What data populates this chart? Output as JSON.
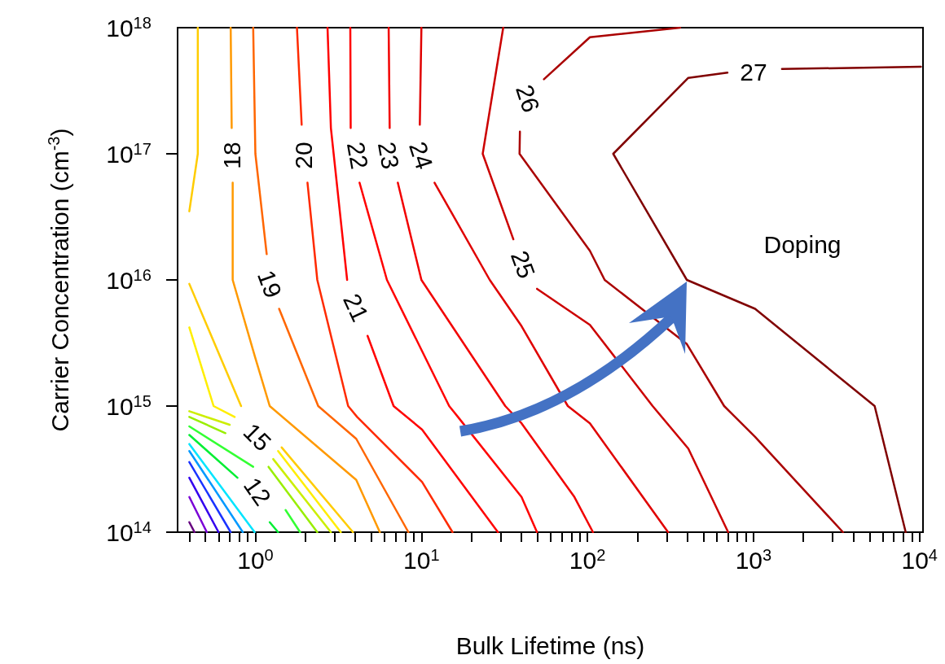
{
  "chart_data": {
    "type": "line",
    "xlabel": "Bulk Lifetime (ns)",
    "ylabel": "Carrier Concentration (cm$^{-3}$)",
    "log": "xy",
    "marker": "none",
    "line_style": "solid",
    "grid": false,
    "xlim": [
      0.34,
      10500
    ],
    "ylim": [
      100000000000000.0,
      1e+18
    ],
    "xticks": [
      {
        "value": 0.4,
        "label": null
      },
      {
        "value": 0.5,
        "label": null
      },
      {
        "value": 0.6,
        "label": null
      },
      {
        "value": 0.7,
        "label": null
      },
      {
        "value": 0.8,
        "label": null
      },
      {
        "value": 0.9,
        "label": null
      },
      {
        "value": 1,
        "label": "10$^{0}$"
      },
      {
        "value": 2,
        "label": null
      },
      {
        "value": 3,
        "label": null
      },
      {
        "value": 4,
        "label": null
      },
      {
        "value": 5,
        "label": null
      },
      {
        "value": 6,
        "label": null
      },
      {
        "value": 7,
        "label": null
      },
      {
        "value": 8,
        "label": null
      },
      {
        "value": 9,
        "label": null
      },
      {
        "value": 10,
        "label": "10$^{1}$"
      },
      {
        "value": 20,
        "label": null
      },
      {
        "value": 30,
        "label": null
      },
      {
        "value": 40,
        "label": null
      },
      {
        "value": 50,
        "label": null
      },
      {
        "value": 60,
        "label": null
      },
      {
        "value": 70,
        "label": null
      },
      {
        "value": 80,
        "label": null
      },
      {
        "value": 90,
        "label": null
      },
      {
        "value": 100,
        "label": "10$^{2}$"
      },
      {
        "value": 200,
        "label": null
      },
      {
        "value": 300,
        "label": null
      },
      {
        "value": 400,
        "label": null
      },
      {
        "value": 500,
        "label": null
      },
      {
        "value": 600,
        "label": null
      },
      {
        "value": 700,
        "label": null
      },
      {
        "value": 800,
        "label": null
      },
      {
        "value": 900,
        "label": null
      },
      {
        "value": 1000,
        "label": "10$^{3}$"
      },
      {
        "value": 2000,
        "label": null
      },
      {
        "value": 3000,
        "label": null
      },
      {
        "value": 4000,
        "label": null
      },
      {
        "value": 5000,
        "label": null
      },
      {
        "value": 6000,
        "label": null
      },
      {
        "value": 7000,
        "label": null
      },
      {
        "value": 8000,
        "label": null
      },
      {
        "value": 9000,
        "label": null
      },
      {
        "value": 10000,
        "label": "10$^{4}$"
      }
    ],
    "yticks": [
      {
        "value": 100000000000000.0,
        "label": "10$^{14}$"
      },
      {
        "value": 1000000000000000.0,
        "label": "10$^{15}$"
      },
      {
        "value": 1e+16,
        "label": "10$^{16}$"
      },
      {
        "value": 1e+17,
        "label": "10$^{17}$"
      },
      {
        "value": 1e+18,
        "label": "10$^{18}$"
      }
    ],
    "series": [
      {
        "color": "#660080",
        "x": [
          0.4,
          0.43
        ],
        "values": [
          120000000000000.0,
          100000000000000.0
        ]
      },
      {
        "color": "#7a00d6",
        "x": [
          0.4,
          0.51
        ],
        "values": [
          190000000000000.0,
          100000000000000.0
        ]
      },
      {
        "color": "#3300ee",
        "x": [
          0.4,
          0.6
        ],
        "values": [
          270000000000000.0,
          100000000000000.0
        ]
      },
      {
        "color": "#1a33ff",
        "x": [
          0.4,
          0.71
        ],
        "values": [
          360000000000000.0,
          100000000000000.0
        ]
      },
      {
        "color": "#0099ff",
        "x": [
          0.4,
          0.84
        ],
        "values": [
          440000000000000.0,
          100000000000000.0
        ]
      },
      {
        "color": "#00e5ff",
        "x": [
          0.4,
          0.99
        ],
        "values": [
          500000000000000.0,
          100000000000000.0
        ]
      },
      {
        "color": "#00ee33",
        "x": [
          0.4,
          0.78
        ],
        "values": [
          590000000000000.0,
          270000000000000.0
        ]
      },
      {
        "color": "#00ee33",
        "x": [
          1.22,
          1.37
        ],
        "values": [
          120000000000000.0,
          100000000000000.0
        ]
      },
      {
        "color": "#33ff33",
        "x": [
          0.4,
          0.97
        ],
        "values": [
          690000000000000.0,
          330000000000000.0
        ]
      },
      {
        "color": "#33ff33",
        "x": [
          1.52,
          1.86
        ],
        "values": [
          150000000000000.0,
          100000000000000.0
        ]
      },
      {
        "color": "#99ee00",
        "x": [
          0.4,
          0.66
        ],
        "values": [
          820000000000000.0,
          610000000000000.0
        ]
      },
      {
        "color": "#99ee00",
        "x": [
          1.2,
          2.36
        ],
        "values": [
          330000000000000.0,
          100000000000000.0
        ]
      },
      {
        "color": "#ccee00",
        "x": [
          0.4,
          0.7
        ],
        "values": [
          910000000000000.0,
          710000000000000.0
        ]
      },
      {
        "color": "#ccee00",
        "x": [
          1.28,
          2.85
        ],
        "values": [
          380000000000000.0,
          100000000000000.0
        ]
      },
      {
        "color": "#ffee00",
        "x": [
          0.4,
          0.56,
          0.75
        ],
        "values": [
          4200000000000000.0,
          1000000000000000.0,
          820000000000000.0
        ]
      },
      {
        "color": "#ffee00",
        "x": [
          1.37,
          3.27
        ],
        "values": [
          440000000000000.0,
          100000000000000.0
        ]
      },
      {
        "color": "#ffcc00",
        "x": [
          0.45,
          0.45,
          0.4
        ],
        "values": [
          1e+18,
          1e+17,
          3.5e+16
        ]
      },
      {
        "color": "#ffcc00",
        "x": [
          0.4,
          0.82
        ],
        "values": [
          9300000000000000.0,
          1000000000000000.0
        ]
      },
      {
        "color": "#ffcc00",
        "x": [
          1.44,
          3.87
        ],
        "values": [
          470000000000000.0,
          100000000000000.0
        ]
      },
      {
        "color": "#ff9900",
        "x": [
          0.71,
          0.72
        ],
        "values": [
          1e+18,
          1.6e+17
        ]
      },
      {
        "color": "#ff9900",
        "x": [
          0.73,
          0.73,
          1.0,
          1.22,
          4.05,
          5.62
        ],
        "values": [
          5.9e+16,
          1e+16,
          2400000000000000.0,
          1000000000000000.0,
          260000000000000.0,
          100000000000000.0
        ]
      },
      {
        "color": "#ff6600",
        "x": [
          0.97,
          1.0,
          1.17
        ],
        "values": [
          1e+18,
          1e+17,
          1.6e+16
        ]
      },
      {
        "color": "#ff6600",
        "x": [
          1.39,
          2.39,
          4.05,
          8.35
        ],
        "values": [
          5900000000000000.0,
          1000000000000000.0,
          550000000000000.0,
          100000000000000.0
        ]
      },
      {
        "color": "#ff2a00",
        "x": [
          1.78,
          1.9
        ],
        "values": [
          1e+18,
          1.7e+17
        ]
      },
      {
        "color": "#ff2a00",
        "x": [
          2.06,
          2.36,
          3.62,
          4.1,
          10.1,
          15.4
        ],
        "values": [
          5.9e+16,
          1e+16,
          1000000000000000.0,
          820000000000000.0,
          250000000000000.0,
          100000000000000.0
        ]
      },
      {
        "color": "#ff0000",
        "x": [
          2.72,
          2.85,
          3.57
        ],
        "values": [
          1e+18,
          1.6e+17,
          1e+16
        ]
      },
      {
        "color": "#ff0000",
        "x": [
          4.74,
          6.8,
          10.1,
          28.9
        ],
        "values": [
          3600000000000000.0,
          1000000000000000.0,
          650000000000000.0,
          100000000000000.0
        ]
      },
      {
        "color": "#ff0000",
        "x": [
          3.73,
          3.75
        ],
        "values": [
          1e+18,
          1.6e+17
        ]
      },
      {
        "color": "#ff0000",
        "x": [
          4.24,
          6.2,
          14.7,
          16.6,
          40.1,
          49.7
        ],
        "values": [
          5.9e+16,
          1e+16,
          1000000000000000.0,
          820000000000000.0,
          190000000000000.0,
          100000000000000.0
        ]
      },
      {
        "color": "#f20000",
        "x": [
          6.35,
          6.44
        ],
        "values": [
          1e+18,
          1.6e+17
        ]
      },
      {
        "color": "#f20000",
        "x": [
          7.21,
          10.0,
          32.0,
          40.1,
          83.5,
          108
        ],
        "values": [
          5.9e+16,
          1e+16,
          1000000000000000.0,
          730000000000000.0,
          190000000000000.0,
          100000000000000.0
        ]
      },
      {
        "color": "#e00000",
        "x": [
          10.0,
          9.78
        ],
        "values": [
          1e+18,
          1.7e+17
        ]
      },
      {
        "color": "#e00000",
        "x": [
          12.0,
          25.8,
          40.1,
          76.2,
          103.5,
          306
        ],
        "values": [
          5.9e+16,
          1e+16,
          4300000000000000.0,
          1000000000000000.0,
          730000000000000.0,
          100000000000000.0
        ]
      },
      {
        "color": "#cc0000",
        "x": [
          31.1,
          23.4,
          35.8
        ],
        "values": [
          1e+18,
          1e+17,
          2.1e+16
        ]
      },
      {
        "color": "#cc0000",
        "x": [
          49.7,
          103.5,
          247,
          405,
          704
        ],
        "values": [
          8500000000000000.0,
          4400000000000000.0,
          1000000000000000.0,
          460000000000000.0,
          100000000000000.0
        ]
      },
      {
        "color": "#aa0000",
        "x": [
          362,
          103.5,
          54.7
        ],
        "values": [
          1e+18,
          8.4e+17,
          3.9e+17
        ]
      },
      {
        "color": "#aa0000",
        "x": [
          39.2,
          39.0,
          103.5,
          127,
          397,
          666,
          1023,
          3460
        ],
        "values": [
          1.5e+17,
          1e+17,
          1.7e+16,
          1e+16,
          3100000000000000.0,
          1000000000000000.0,
          570000000000000.0,
          100000000000000.0
        ]
      },
      {
        "color": "#800000",
        "x": [
          10200,
          1485
        ],
        "values": [
          4.9e+17,
          4.7e+17
        ]
      },
      {
        "color": "#800000",
        "x": [
          697,
          405,
          143,
          397,
          1023,
          5370,
          8260
        ],
        "values": [
          4.4e+17,
          4e+17,
          1e+17,
          1e+16,
          5900000000000000.0,
          1000000000000000.0,
          100000000000000.0
        ]
      }
    ],
    "annotations": [
      "12",
      "15",
      "18",
      "19",
      "20",
      "21",
      "22",
      "23",
      "24",
      "25",
      "26",
      "27",
      "Doping"
    ]
  }
}
